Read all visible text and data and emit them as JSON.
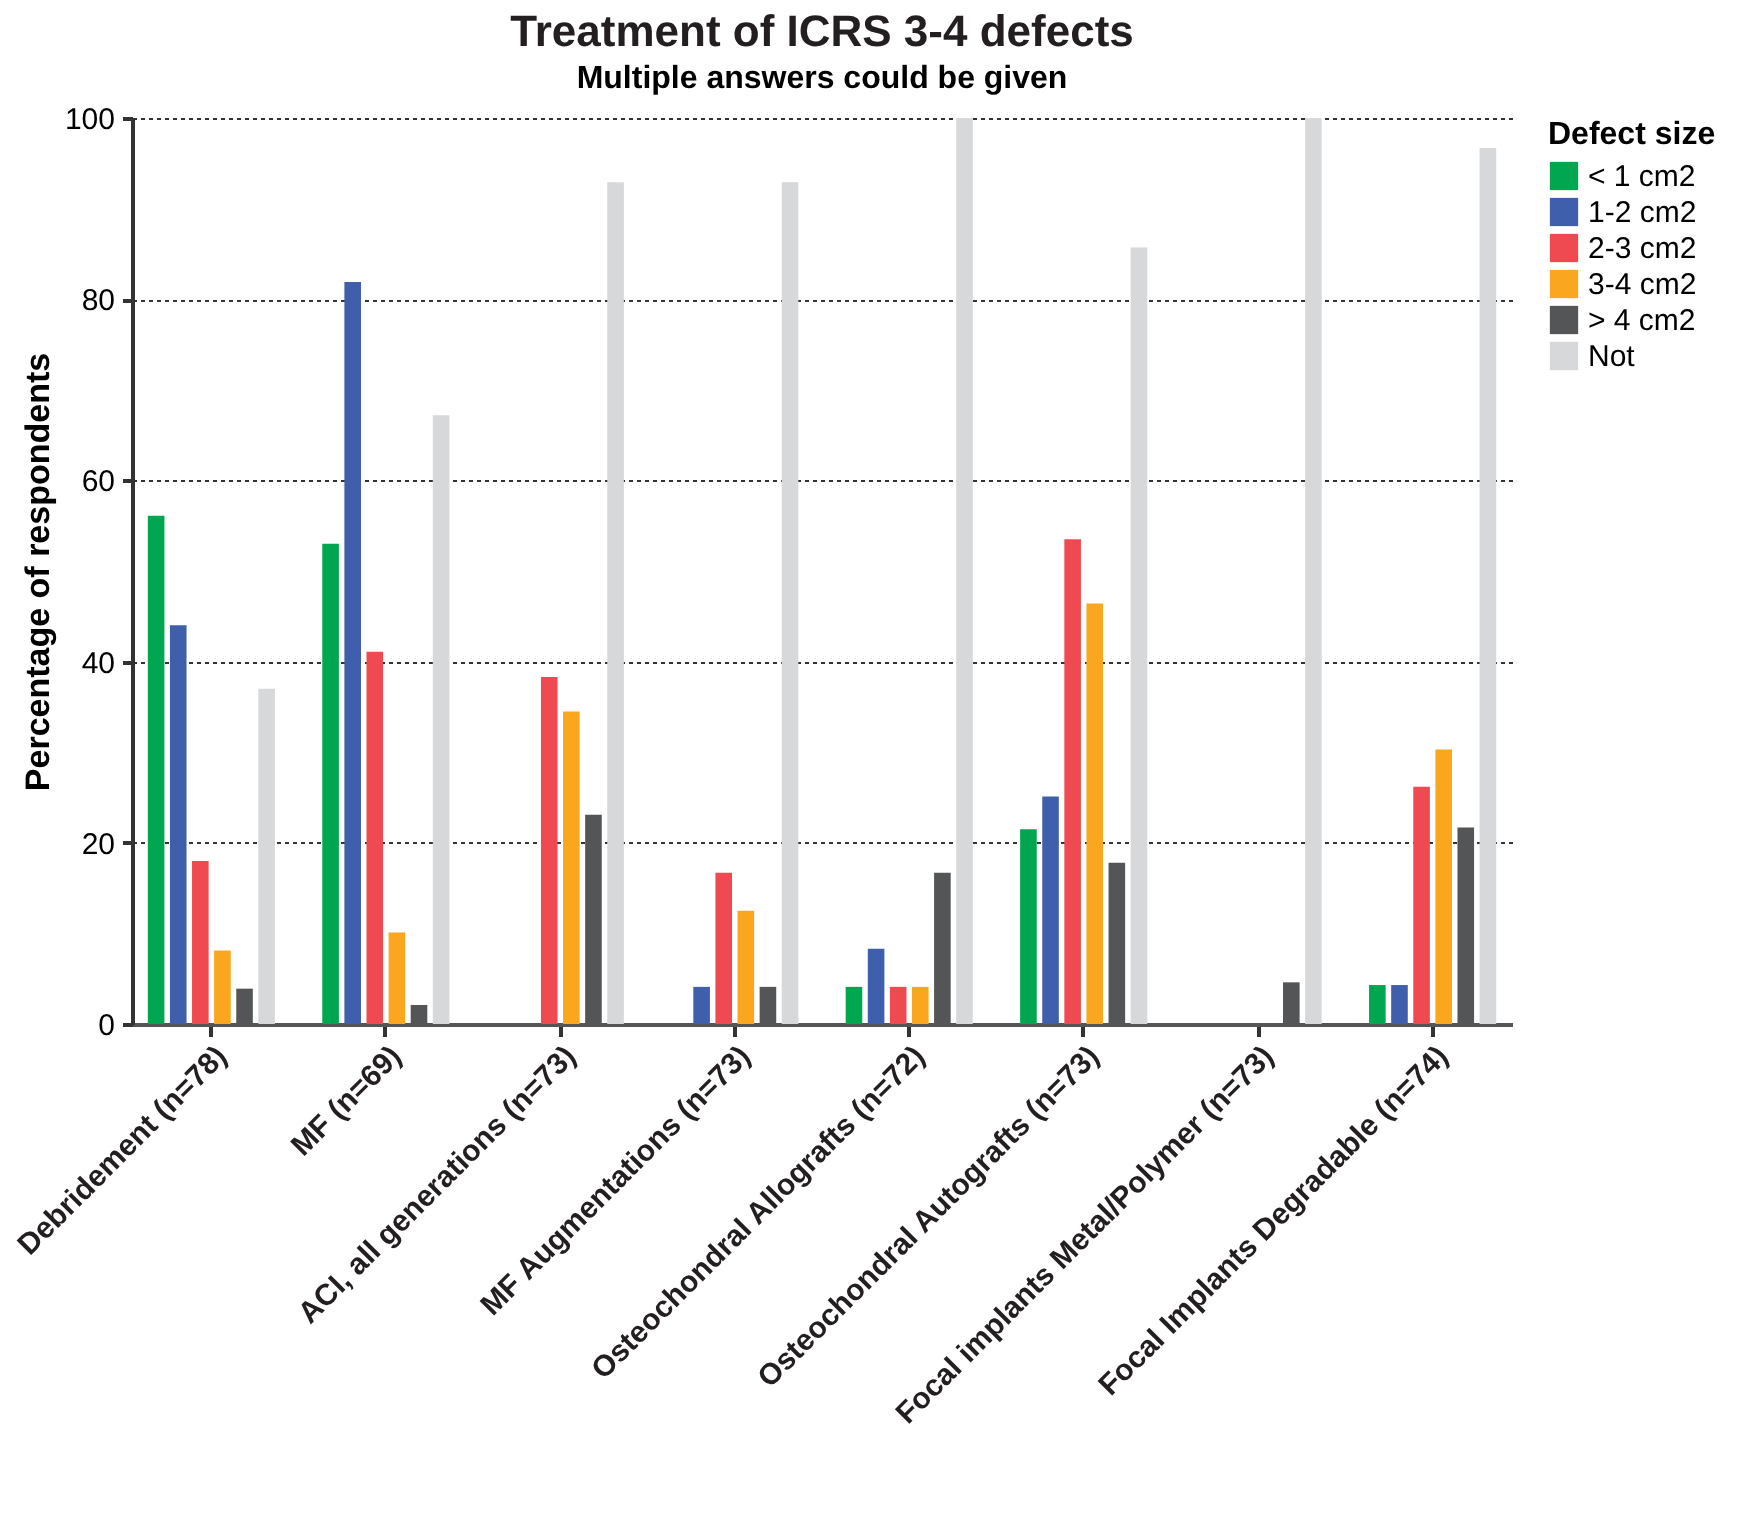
{
  "chart_data": {
    "type": "bar",
    "title": "Treatment of  ICRS 3-4 defects",
    "subtitle": "Multiple answers could be given",
    "ylabel": "Percentage of respondents",
    "legend_title": "Defect size",
    "categories": [
      "Debridement (n=78)",
      "MF (n=69)",
      "ACI, all generations (n=73)",
      "MF Augmentations (n=73)",
      "Osteochondral Allografts (n=72)",
      "Osteochondral Autografts (n=73)",
      "Focal implants Metal/Polymer (n=73)",
      "Focal Implants Degradable (n=74)"
    ],
    "series": [
      {
        "name": "< 1 cm2",
        "color": "#00a650",
        "values": [
          56.1,
          53.0,
          null,
          null,
          4.1,
          21.5,
          null,
          4.3
        ]
      },
      {
        "name": "1-2 cm2",
        "color": "#3f5eab",
        "values": [
          44.0,
          81.9,
          null,
          4.1,
          8.3,
          25.1,
          null,
          4.3
        ]
      },
      {
        "name": "2-3 cm2",
        "color": "#ef4a51",
        "values": [
          18.0,
          41.1,
          38.3,
          16.7,
          4.1,
          53.5,
          null,
          26.2
        ]
      },
      {
        "name": "3-4 cm2",
        "color": "#faa61e",
        "values": [
          8.1,
          10.1,
          34.5,
          12.5,
          4.1,
          46.4,
          null,
          30.3
        ]
      },
      {
        "name": "> 4 cm2",
        "color": "#545556",
        "values": [
          3.9,
          2.1,
          23.1,
          4.1,
          16.7,
          17.8,
          4.6,
          21.7
        ]
      },
      {
        "name": "Not",
        "color": "#d7d8da",
        "values": [
          37.0,
          67.2,
          92.9,
          92.9,
          100,
          85.7,
          100,
          96.7
        ]
      }
    ],
    "ylim": [
      0,
      100
    ],
    "yticks": [
      0,
      20,
      40,
      60,
      80,
      100
    ],
    "grid": "y",
    "legend": "top right"
  }
}
